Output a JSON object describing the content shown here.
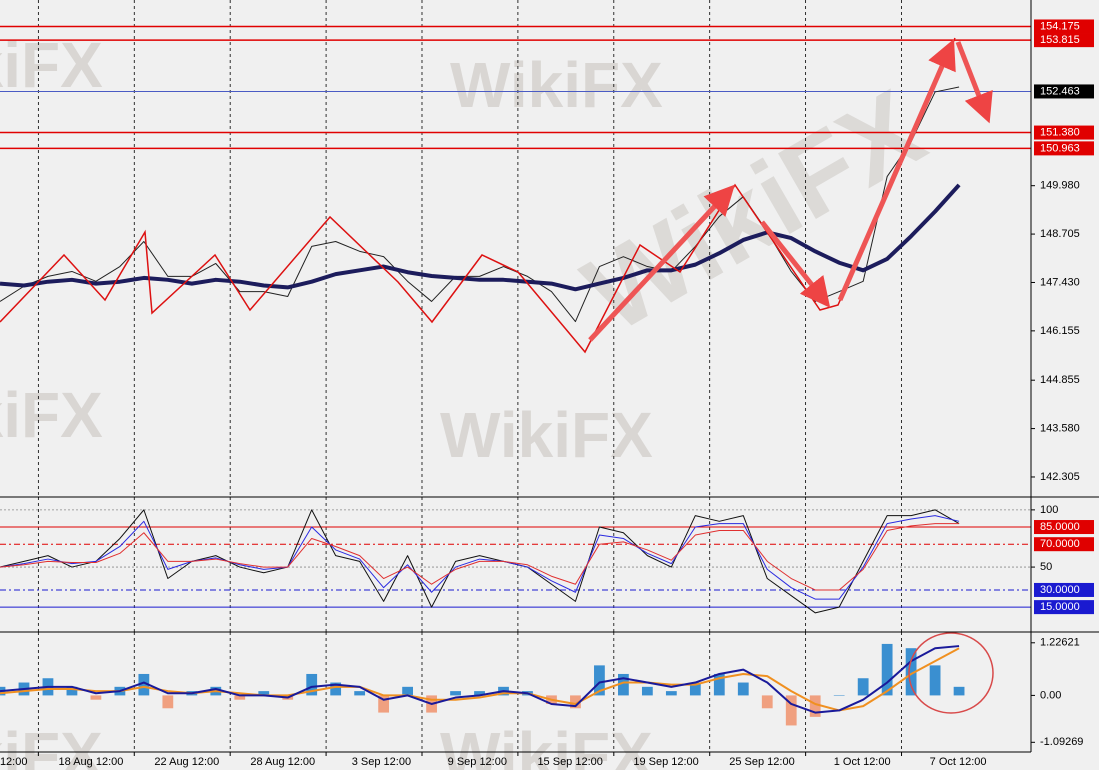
{
  "watermark": "WikiFX",
  "chart_data": [
    {
      "type": "line",
      "x": [
        0,
        5,
        10,
        15,
        20,
        25,
        30,
        35,
        40,
        45,
        50,
        55,
        60,
        65,
        70,
        75,
        80,
        85,
        90,
        95,
        100,
        105,
        110,
        115,
        120,
        125,
        130,
        135,
        140,
        145,
        150,
        155,
        160,
        165,
        170,
        175,
        180,
        185,
        190,
        195,
        200
      ],
      "xlim": [
        0,
        215
      ],
      "ylim": [
        141.83,
        154.82
      ],
      "yticks": [
        {
          "value": 149.98,
          "label": "149.980"
        },
        148.705,
        {
          "value": 147.43,
          "label": "147.430"
        },
        146.155,
        144.855,
        {
          "value": 143.58,
          "label": "143.580"
        },
        142.305
      ],
      "levels": [
        {
          "value": 154.175,
          "color": "#e00000",
          "box_color": "#e00000"
        },
        {
          "value": 153.815,
          "color": "#e00000",
          "box_color": "#e00000"
        },
        {
          "value": 152.463,
          "color": "#4a5bc4",
          "box_color": "#000000"
        },
        {
          "value": 151.38,
          "label": "151.380",
          "color": "#e00000",
          "box_color": "#e00000"
        },
        {
          "value": 150.963,
          "color": "#e00000",
          "box_color": "#e00000"
        }
      ],
      "grid": true,
      "series": [
        {
          "color": "#222222",
          "values": [
            146.93,
            147.33,
            147.59,
            147.72,
            147.46,
            147.85,
            148.51,
            147.59,
            147.59,
            147.93,
            147.19,
            147.19,
            147.06,
            148.38,
            148.51,
            148.25,
            148.11,
            147.46,
            146.93,
            147.59,
            147.59,
            147.85,
            147.59,
            147.19,
            146.4,
            147.85,
            148.11,
            147.85,
            147.72,
            148.38,
            149.17,
            149.69,
            148.77,
            147.72,
            146.93,
            147.19,
            147.46,
            150.22,
            151.14,
            152.45,
            152.58
          ]
        },
        {
          "color": "#1c1c5c",
          "values": [
            147.4,
            147.35,
            147.45,
            147.5,
            147.4,
            147.45,
            147.55,
            147.5,
            147.4,
            147.5,
            147.45,
            147.35,
            147.3,
            147.45,
            147.65,
            147.75,
            147.85,
            147.7,
            147.6,
            147.55,
            147.5,
            147.5,
            147.45,
            147.4,
            147.25,
            147.4,
            147.55,
            147.75,
            147.75,
            147.9,
            148.2,
            148.55,
            148.75,
            148.6,
            148.25,
            147.95,
            147.75,
            148.05,
            148.65,
            149.3,
            150.0
          ]
        }
      ]
    },
    {
      "type": "line",
      "x": [
        0,
        5,
        10,
        15,
        20,
        25,
        30,
        35,
        40,
        45,
        50,
        55,
        60,
        65,
        70,
        75,
        80,
        85,
        90,
        95,
        100,
        105,
        110,
        115,
        120,
        125,
        130,
        135,
        140,
        145,
        150,
        155,
        160,
        165,
        170,
        175,
        180,
        185,
        190,
        195,
        200
      ],
      "xlim": [
        0,
        215
      ],
      "ylim": [
        -5,
        109.5
      ],
      "yticks": [
        100,
        50
      ],
      "levels": [
        {
          "value": 85,
          "label": "85.0000",
          "color": "#e00000",
          "box_color": "#e00000",
          "dash": "none"
        },
        {
          "value": 70,
          "label": "70.0000",
          "color": "#e00000",
          "box_color": "#e00000",
          "dash": "6 3 2 3"
        },
        {
          "value": 30,
          "label": "30.0000",
          "color": "#1a1ad0",
          "box_color": "#1a1ad0",
          "dash": "6 3 2 3"
        },
        {
          "value": 15,
          "label": "15.0000",
          "color": "#1a1ad0",
          "box_color": "#1a1ad0",
          "dash": "none"
        }
      ],
      "grid": true,
      "series": [
        {
          "color": "#111111",
          "values": [
            50,
            55,
            60,
            50,
            55,
            75,
            100,
            40,
            55,
            60,
            50,
            45,
            50,
            100,
            60,
            55,
            20,
            60,
            15,
            55,
            60,
            55,
            50,
            35,
            20,
            85,
            80,
            60,
            50,
            95,
            90,
            95,
            40,
            25,
            10,
            15,
            55,
            95,
            95,
            100,
            88
          ]
        },
        {
          "color": "#2a2ae0",
          "values": [
            50,
            53,
            57,
            53,
            55,
            68,
            90,
            48,
            55,
            58,
            52,
            48,
            50,
            85,
            65,
            57,
            32,
            52,
            28,
            50,
            57,
            55,
            50,
            38,
            28,
            78,
            75,
            62,
            53,
            85,
            88,
            88,
            48,
            32,
            22,
            22,
            50,
            88,
            92,
            95,
            90
          ]
        },
        {
          "color": "#e03030",
          "values": [
            50,
            52,
            55,
            54,
            54,
            62,
            80,
            55,
            55,
            57,
            53,
            50,
            50,
            75,
            68,
            60,
            40,
            50,
            35,
            48,
            55,
            55,
            52,
            42,
            35,
            70,
            72,
            65,
            56,
            78,
            82,
            82,
            55,
            40,
            30,
            30,
            48,
            82,
            86,
            88,
            88
          ]
        }
      ]
    },
    {
      "type": "line",
      "x": [
        0,
        5,
        10,
        15,
        20,
        25,
        30,
        35,
        40,
        45,
        50,
        55,
        60,
        65,
        70,
        75,
        80,
        85,
        90,
        95,
        100,
        105,
        110,
        115,
        120,
        125,
        130,
        135,
        140,
        145,
        150,
        155,
        160,
        165,
        170,
        175,
        180,
        185,
        190,
        195,
        200
      ],
      "xlim": [
        0,
        215
      ],
      "ylim": [
        -1.272,
        1.431
      ],
      "yticks": [
        1.22621,
        {
          "value": 0,
          "label": "0.00"
        },
        -1.09269
      ],
      "grid": true,
      "xticks": [
        {
          "value": -12,
          "label": "12:00"
        },
        {
          "value": 8,
          "label": "18 Aug 12:00"
        },
        {
          "value": 28,
          "label": "22 Aug 12:00"
        },
        {
          "value": 48,
          "label": "28 Aug 12:00"
        },
        {
          "value": 68,
          "label": "3 Sep 12:00"
        },
        {
          "value": 88,
          "label": "9 Sep 12:00"
        },
        {
          "value": 108,
          "label": "15 Sep 12:00"
        },
        {
          "value": 128,
          "label": "19 Sep 12:00"
        },
        {
          "value": 148,
          "label": "25 Sep 12:00"
        },
        {
          "value": 168,
          "label": "1 Oct 12:00"
        },
        {
          "value": 188,
          "label": "7 Oct 12:00"
        }
      ],
      "series": [
        {
          "type": "bar",
          "color": "#3a8fd0",
          "negative_color": "#f0a080",
          "values": [
            0.2,
            0.3,
            0.4,
            0.2,
            -0.1,
            0.2,
            0.5,
            -0.3,
            0.1,
            0.2,
            -0.1,
            0.1,
            -0.1,
            0.5,
            0.3,
            0.1,
            -0.4,
            0.2,
            -0.4,
            0.1,
            0.1,
            0.2,
            0.1,
            -0.2,
            -0.3,
            0.7,
            0.5,
            0.2,
            0.1,
            0.3,
            0.5,
            0.3,
            -0.3,
            -0.7,
            -0.5,
            0.0,
            0.4,
            1.2,
            1.1,
            0.7,
            0.2
          ]
        },
        {
          "color": "#f09020",
          "values": [
            0.05,
            0.1,
            0.15,
            0.15,
            0.1,
            0.1,
            0.2,
            0.1,
            0.05,
            0.1,
            0.05,
            0.0,
            0.0,
            0.1,
            0.2,
            0.2,
            0.0,
            0.0,
            -0.1,
            -0.1,
            -0.05,
            0.05,
            0.05,
            -0.1,
            -0.2,
            0.1,
            0.3,
            0.3,
            0.25,
            0.25,
            0.4,
            0.5,
            0.45,
            0.1,
            -0.2,
            -0.35,
            -0.25,
            0.1,
            0.5,
            0.8,
            1.1
          ]
        },
        {
          "color": "#1a1a9a",
          "values": [
            0.1,
            0.15,
            0.2,
            0.2,
            0.05,
            0.1,
            0.3,
            0.05,
            0.05,
            0.15,
            0.0,
            0.0,
            -0.05,
            0.2,
            0.25,
            0.2,
            -0.1,
            0.0,
            -0.2,
            -0.05,
            0.0,
            0.1,
            0.05,
            -0.2,
            -0.25,
            0.3,
            0.4,
            0.3,
            0.2,
            0.3,
            0.5,
            0.6,
            0.3,
            -0.2,
            -0.4,
            -0.35,
            -0.1,
            0.3,
            0.8,
            1.1,
            1.15
          ]
        }
      ]
    }
  ]
}
